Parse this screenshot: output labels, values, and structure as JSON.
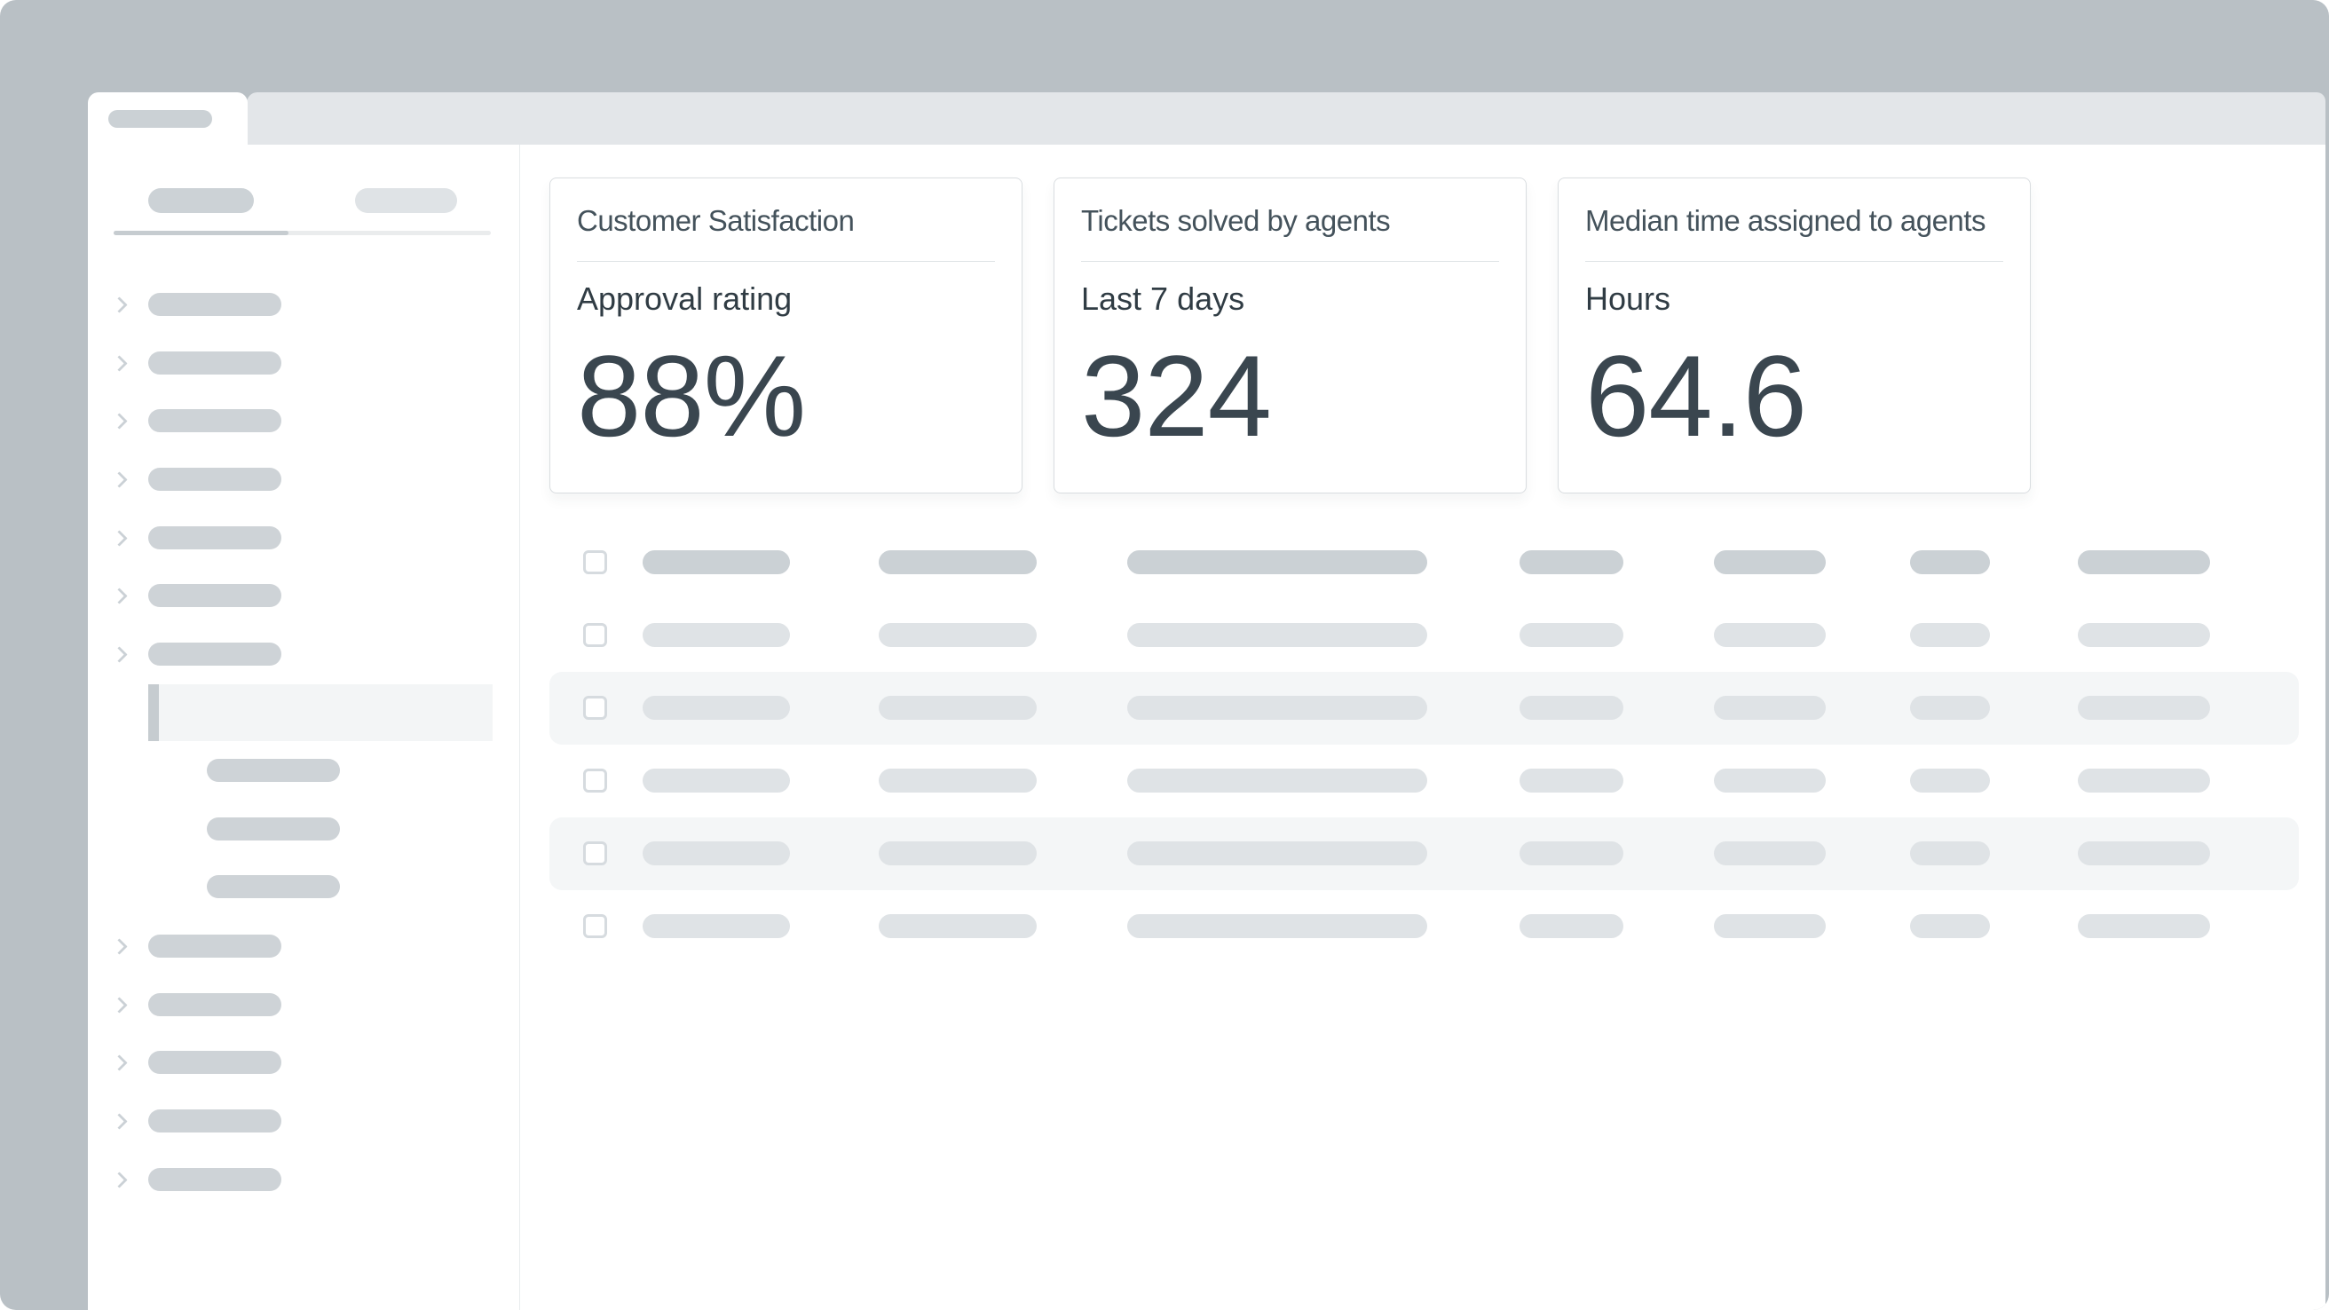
{
  "colors": {
    "canvas_background": "#b9c0c5",
    "titlebar_strip": "#e3e6e9",
    "skeleton_dark": "#ccd2d6",
    "skeleton_light": "#dfe3e6",
    "accent_bar": "#c6ccd0",
    "shaded_row_background": "#f4f6f7",
    "card_border": "#d9dde0",
    "text_dark_slate": "#3a464f"
  },
  "metrics": [
    {
      "title": "Customer Satisfaction",
      "subtitle": "Approval rating",
      "value": "88%"
    },
    {
      "title": "Tickets solved by agents",
      "subtitle": "Last 7 days",
      "value": "324"
    },
    {
      "title": "Median time assigned to agents",
      "subtitle": "Hours",
      "value": "64.6"
    }
  ],
  "sidebar": {
    "tab_count": 2,
    "active_tab_index": 0,
    "nav_top_count": 7,
    "selected_sub_item_count": 3,
    "nav_bottom_count": 5,
    "chevron_icon": "chevron-right-icon"
  },
  "table": {
    "row_count": 6,
    "header_row_index": 0,
    "shaded_row_indexes": [
      2,
      4
    ],
    "columns_per_row": 7,
    "checkboxes_checked": false
  }
}
